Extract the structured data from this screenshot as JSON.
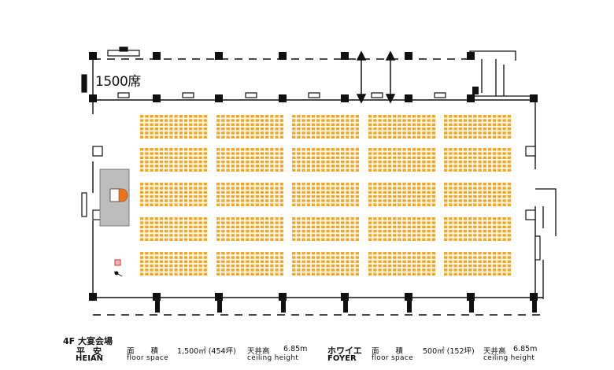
{
  "hall": {
    "seat_count": "1500席",
    "floor_name": "4F 大宴会場",
    "name_jp": "平安",
    "name_en": "HEIAN",
    "area_label_jp": "面 積",
    "area_label_en": "floor space",
    "area_value": "1,500㎡ (454坪)",
    "ceiling_label_jp": "天井高",
    "ceiling_value": "6.85m",
    "ceiling_label_en": "ceiling height"
  },
  "foyer": {
    "name_jp": "ホワイエ",
    "name_en": "FOYER",
    "area_label_jp": "面 積",
    "area_label_en": "floor space",
    "area_value": "500㎡ (152坪)",
    "ceiling_label_jp": "天井高",
    "ceiling_value": "6.85m",
    "ceiling_label_en": "ceiling height"
  },
  "colors": {
    "seat": "#f5a623",
    "stage": "#bdbdbd",
    "wall": "#111111",
    "podium": "#e8731a"
  }
}
